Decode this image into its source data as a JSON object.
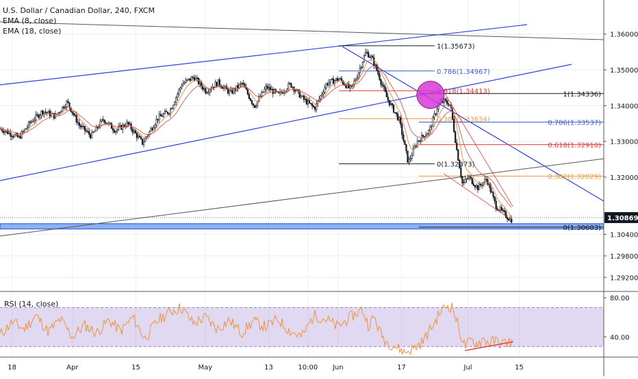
{
  "header": {
    "symbol_line": "U.S. Dollar / Canadian Dollar, 240, FXCM",
    "ema8_label": "EMA (8, close)",
    "ema18_label": "EMA (18, close)"
  },
  "rsi_pane": {
    "label": "RSI (14, close)",
    "ticks": [
      "80.00",
      "40.00"
    ]
  },
  "chart_data": [
    {
      "type": "candlestick",
      "title": "U.S. Dollar / Canadian Dollar, 240, FXCM",
      "ylim": [
        1.2892,
        1.3676
      ],
      "price_ticks": [
        "1.36000",
        "1.35000",
        "1.34000",
        "1.33000",
        "1.32000",
        "1.30400",
        "1.29800",
        "1.29200"
      ],
      "last_price": "1.30869",
      "x_ticks": [
        "18",
        "Apr",
        "15",
        "May",
        "13",
        "10:00",
        "Jun",
        "17",
        "Jul",
        "15"
      ],
      "price_path": [
        [
          0.0,
          1.3335
        ],
        [
          0.03,
          1.331
        ],
        [
          0.05,
          1.3355
        ],
        [
          0.07,
          1.3385
        ],
        [
          0.09,
          1.337
        ],
        [
          0.11,
          1.341
        ],
        [
          0.13,
          1.3345
        ],
        [
          0.15,
          1.3315
        ],
        [
          0.17,
          1.3362
        ],
        [
          0.19,
          1.333
        ],
        [
          0.21,
          1.335
        ],
        [
          0.235,
          1.3295
        ],
        [
          0.26,
          1.3365
        ],
        [
          0.28,
          1.3385
        ],
        [
          0.3,
          1.346
        ],
        [
          0.32,
          1.348
        ],
        [
          0.34,
          1.344
        ],
        [
          0.36,
          1.3465
        ],
        [
          0.38,
          1.3435
        ],
        [
          0.4,
          1.3462
        ],
        [
          0.42,
          1.3398
        ],
        [
          0.44,
          1.3452
        ],
        [
          0.46,
          1.343
        ],
        [
          0.48,
          1.346
        ],
        [
          0.5,
          1.342
        ],
        [
          0.52,
          1.3392
        ],
        [
          0.54,
          1.3462
        ],
        [
          0.56,
          1.3475
        ],
        [
          0.58,
          1.3445
        ],
        [
          0.59,
          1.3482
        ],
        [
          0.605,
          1.355
        ],
        [
          0.615,
          1.3532
        ],
        [
          0.625,
          1.349
        ],
        [
          0.64,
          1.342
        ],
        [
          0.66,
          1.336
        ],
        [
          0.675,
          1.324
        ],
        [
          0.69,
          1.33
        ],
        [
          0.71,
          1.333
        ],
        [
          0.725,
          1.3405
        ],
        [
          0.735,
          1.3412
        ],
        [
          0.745,
          1.3402
        ],
        [
          0.755,
          1.328
        ],
        [
          0.765,
          1.318
        ],
        [
          0.775,
          1.32
        ],
        [
          0.79,
          1.317
        ],
        [
          0.805,
          1.3195
        ],
        [
          0.82,
          1.312
        ],
        [
          0.835,
          1.3095
        ],
        [
          0.845,
          1.308
        ],
        [
          0.85,
          1.3087
        ]
      ],
      "series": [
        {
          "name": "EMA (8, close)",
          "color": "#e8833a"
        },
        {
          "name": "EMA (18, close)",
          "color": "#e8833a"
        }
      ],
      "fibonacci": [
        {
          "name": "first",
          "levels": [
            {
              "label": "1(1.35673)",
              "value": 1.35673,
              "color": "#131722"
            },
            {
              "label": "0.786(1.34967)",
              "value": 1.34967,
              "color": "#3b5bd6"
            },
            {
              "label": "0.618(1.34413)",
              "value": 1.34413,
              "color": "#e53935"
            },
            {
              "label": "0.382(1.33634)",
              "value": 1.33634,
              "color": "#f39c3a"
            },
            {
              "label": "0(1.32373)",
              "value": 1.32373,
              "color": "#131722"
            }
          ]
        },
        {
          "name": "second",
          "levels": [
            {
              "label": "1(1.34336)",
              "value": 1.34336,
              "color": "#131722"
            },
            {
              "label": "0.786(1.33537)",
              "value": 1.33537,
              "color": "#3b5bd6"
            },
            {
              "label": "0.618(1.32910)",
              "value": 1.3291,
              "color": "#e53935"
            },
            {
              "label": "0.382(1.32029)",
              "value": 1.32029,
              "color": "#f39c3a"
            },
            {
              "label": "0(1.30603)",
              "value": 1.30603,
              "color": "#131722"
            }
          ]
        }
      ],
      "support_zone": [
        1.3055,
        1.307
      ],
      "colors": {
        "candle": "#131722",
        "ema": "#e8833a",
        "channel": "#2f3fe0",
        "trend": "#555555",
        "circle": "#d63ad6",
        "zone": "#5b8ff0"
      }
    },
    {
      "type": "line",
      "title": "RSI (14, close)",
      "ylim": [
        20,
        85
      ],
      "band": [
        30,
        70
      ],
      "ticks": [
        80,
        40
      ],
      "rsi_path": [
        [
          0.0,
          42
        ],
        [
          0.02,
          55
        ],
        [
          0.04,
          48
        ],
        [
          0.06,
          62
        ],
        [
          0.08,
          45
        ],
        [
          0.1,
          58
        ],
        [
          0.12,
          40
        ],
        [
          0.14,
          52
        ],
        [
          0.16,
          44
        ],
        [
          0.18,
          57
        ],
        [
          0.2,
          46
        ],
        [
          0.22,
          60
        ],
        [
          0.24,
          38
        ],
        [
          0.26,
          56
        ],
        [
          0.28,
          65
        ],
        [
          0.3,
          70
        ],
        [
          0.32,
          54
        ],
        [
          0.34,
          60
        ],
        [
          0.36,
          48
        ],
        [
          0.38,
          57
        ],
        [
          0.4,
          44
        ],
        [
          0.42,
          56
        ],
        [
          0.44,
          50
        ],
        [
          0.46,
          58
        ],
        [
          0.48,
          46
        ],
        [
          0.5,
          40
        ],
        [
          0.52,
          62
        ],
        [
          0.54,
          58
        ],
        [
          0.56,
          50
        ],
        [
          0.58,
          60
        ],
        [
          0.6,
          68
        ],
        [
          0.61,
          52
        ],
        [
          0.62,
          60
        ],
        [
          0.63,
          44
        ],
        [
          0.64,
          35
        ],
        [
          0.655,
          30
        ],
        [
          0.67,
          24
        ],
        [
          0.685,
          28
        ],
        [
          0.7,
          35
        ],
        [
          0.71,
          45
        ],
        [
          0.72,
          55
        ],
        [
          0.73,
          66
        ],
        [
          0.74,
          72
        ],
        [
          0.75,
          70
        ],
        [
          0.76,
          48
        ],
        [
          0.77,
          30
        ],
        [
          0.78,
          36
        ],
        [
          0.79,
          33
        ],
        [
          0.8,
          38
        ],
        [
          0.81,
          34
        ],
        [
          0.82,
          36
        ],
        [
          0.83,
          33
        ],
        [
          0.85,
          35
        ]
      ],
      "divergence": [
        [
          0.77,
          26
        ],
        [
          0.85,
          35
        ]
      ]
    }
  ]
}
